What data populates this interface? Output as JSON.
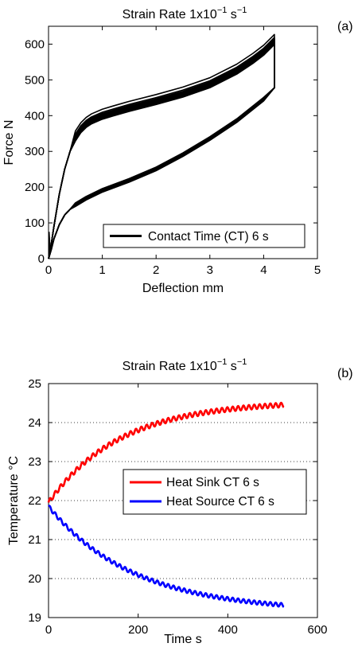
{
  "chart_data": [
    {
      "panel": "(a)",
      "type": "line",
      "title_main": "Strain Rate 1x10",
      "title_exp": "−1",
      "title_unit": " s",
      "title_unit_exp": "−1",
      "xlabel": "Deflection mm",
      "ylabel": "Force N",
      "xlim": [
        0,
        5
      ],
      "ylim": [
        0,
        650
      ],
      "xticks": [
        "0",
        "1",
        "2",
        "3",
        "4",
        "5"
      ],
      "yticks": [
        "0",
        "100",
        "200",
        "300",
        "400",
        "500",
        "600"
      ],
      "grid": false,
      "legend_position": "bottom-right",
      "series": [
        {
          "name": "Contact Time (CT) 6 s",
          "color": "#000000",
          "description": "repeated hysteresis loops (~12 cycles) overlapping",
          "loading_x": [
            0,
            0.05,
            0.1,
            0.2,
            0.3,
            0.4,
            0.5,
            0.6,
            0.7,
            0.8,
            1.0,
            1.2,
            1.5,
            2.0,
            2.5,
            3.0,
            3.5,
            3.8,
            4.0,
            4.2
          ],
          "loading_y": [
            0,
            40,
            90,
            180,
            250,
            300,
            335,
            358,
            373,
            383,
            396,
            405,
            418,
            437,
            458,
            484,
            522,
            552,
            575,
            605
          ],
          "unloading_x": [
            4.2,
            4.2,
            4.0,
            3.5,
            3.0,
            2.5,
            2.0,
            1.5,
            1.0,
            0.7,
            0.5,
            0.4,
            0.3,
            0.2,
            0.1,
            0.05,
            0
          ],
          "unloading_y": [
            605,
            478,
            445,
            385,
            335,
            290,
            250,
            218,
            190,
            168,
            150,
            138,
            122,
            95,
            55,
            25,
            0
          ]
        }
      ]
    },
    {
      "panel": "(b)",
      "type": "line",
      "title_main": "Strain Rate 1x10",
      "title_exp": "−1",
      "title_unit": " s",
      "title_unit_exp": "−1",
      "xlabel": "Time s",
      "ylabel": "Temperature °C",
      "xlim": [
        0,
        600
      ],
      "ylim": [
        19,
        25
      ],
      "xticks": [
        "0",
        "200",
        "400",
        "600"
      ],
      "yticks": [
        "19",
        "20",
        "21",
        "22",
        "23",
        "24",
        "25"
      ],
      "grid": "y-dotted",
      "legend_position": "center-right",
      "series": [
        {
          "name": "Heat Sink CT 6 s",
          "color": "#ff0000",
          "start": 21.95,
          "end": 24.55,
          "tau": 160,
          "t_end": 525,
          "oscillation_period": 12,
          "oscillation_amp": 0.06
        },
        {
          "name": "Heat Source CT 6 s",
          "color": "#0000ff",
          "start": 21.85,
          "end": 19.15,
          "tau": 190,
          "t_end": 525,
          "oscillation_period": 12,
          "oscillation_amp": 0.05
        }
      ]
    }
  ]
}
